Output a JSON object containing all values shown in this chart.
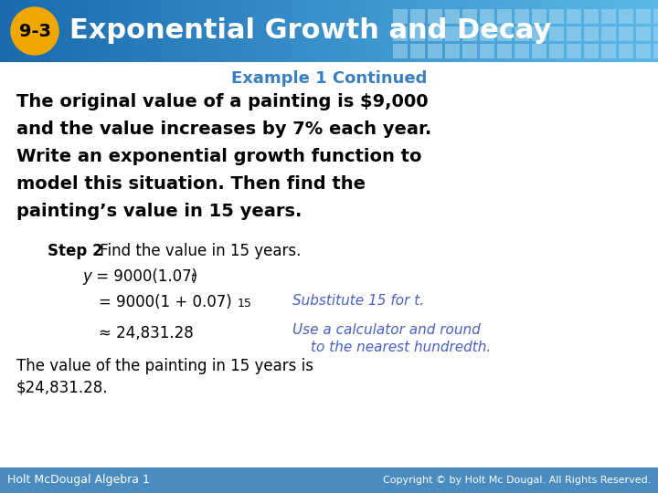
{
  "header_bg_left": "#1a6aad",
  "header_bg_right": "#5bb8e8",
  "header_tile_color": "#7dcbf0",
  "badge_color": "#f0a800",
  "badge_text": "9-3",
  "badge_text_color": "#000000",
  "header_title": "Exponential Growth and Decay",
  "header_text_color": "#ffffff",
  "body_bg_color": "#ffffff",
  "example_title": "Example 1 Continued",
  "example_title_color": "#3a7fbf",
  "problem_text_color": "#000000",
  "step2_color": "#000000",
  "note_color": "#4a5fbf",
  "footer_bg_color": "#4a8cbf",
  "footer_left": "Holt McDougal Algebra 1",
  "footer_right": "Copyright © by Holt Mc Dougal. All Rights Reserved.",
  "footer_text_color": "#ffffff"
}
